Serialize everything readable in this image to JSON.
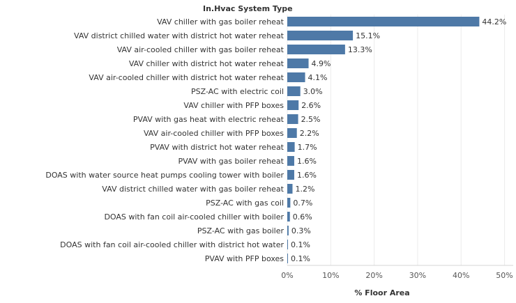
{
  "chart_data": {
    "type": "bar",
    "orientation": "horizontal",
    "row_header": "In.Hvac System Type",
    "xlabel": "% Floor Area",
    "xlim": [
      0,
      52
    ],
    "ticks": [
      0,
      10,
      20,
      30,
      40,
      50
    ],
    "tick_labels": [
      "0%",
      "10%",
      "20%",
      "30%",
      "40%",
      "50%"
    ],
    "grid": true,
    "bar_color": "#4e79a7",
    "categories": [
      "VAV chiller with gas boiler reheat",
      "VAV district chilled water with district hot water reheat",
      "VAV air-cooled chiller with gas boiler reheat",
      "VAV chiller with district hot water reheat",
      "VAV air-cooled chiller with district hot water reheat",
      "PSZ-AC with electric coil",
      "VAV chiller with PFP boxes",
      "PVAV with gas heat with electric reheat",
      "VAV air-cooled chiller with PFP boxes",
      "PVAV with district hot water reheat",
      "PVAV with gas boiler reheat",
      "DOAS with water source heat pumps cooling tower with boiler",
      "VAV district chilled water with gas boiler reheat",
      "PSZ-AC with gas coil",
      "DOAS with fan coil air-cooled chiller with boiler",
      "PSZ-AC with gas boiler",
      "DOAS with fan coil air-cooled chiller with district hot water",
      "PVAV with PFP boxes"
    ],
    "values": [
      44.2,
      15.1,
      13.3,
      4.9,
      4.1,
      3.0,
      2.6,
      2.5,
      2.2,
      1.7,
      1.6,
      1.6,
      1.2,
      0.7,
      0.6,
      0.3,
      0.1,
      0.1
    ],
    "value_labels": [
      "44.2%",
      "15.1%",
      "13.3%",
      "4.9%",
      "4.1%",
      "3.0%",
      "2.6%",
      "2.5%",
      "2.2%",
      "1.7%",
      "1.6%",
      "1.6%",
      "1.2%",
      "0.7%",
      "0.6%",
      "0.3%",
      "0.1%",
      "0.1%"
    ]
  }
}
